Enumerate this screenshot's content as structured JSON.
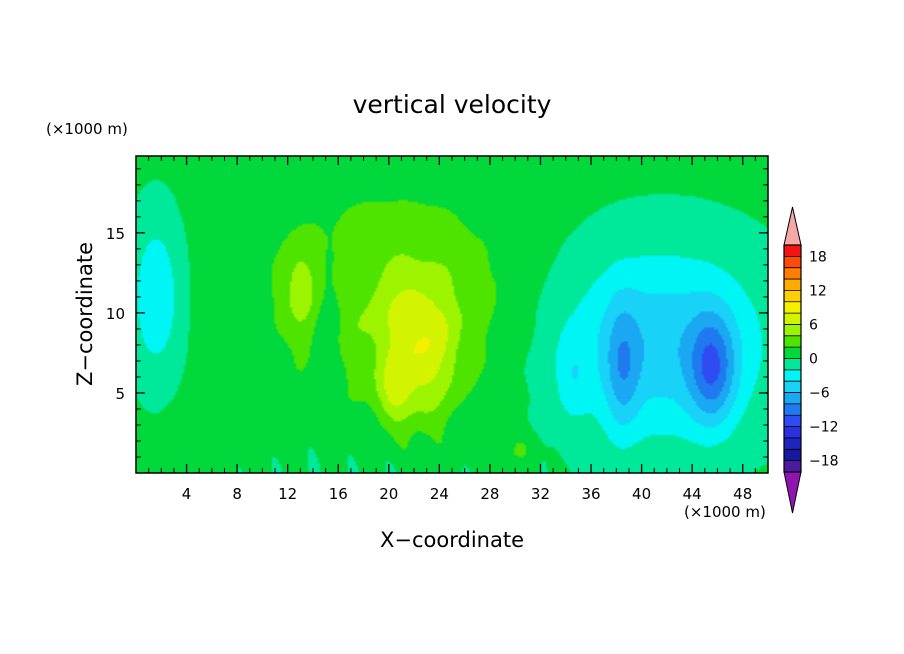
{
  "chart_data": {
    "type": "heatmap",
    "title": "vertical velocity",
    "xlabel": "X−coordinate",
    "ylabel": "Z−coordinate",
    "x_unit": "(×1000 m)",
    "y_unit": "(×1000 m)",
    "xlim": [
      0,
      50
    ],
    "ylim": [
      0,
      19.8
    ],
    "x_ticks": [
      4,
      8,
      12,
      16,
      20,
      24,
      28,
      32,
      36,
      40,
      44,
      48
    ],
    "y_ticks": [
      5,
      10,
      15
    ],
    "colorbar": {
      "levels": [
        -20,
        -18,
        -16,
        -14,
        -12,
        -10,
        -8,
        -6,
        -4,
        -2,
        0,
        2,
        4,
        6,
        8,
        10,
        12,
        14,
        16,
        18,
        20
      ],
      "labeled_ticks": [
        -18,
        -12,
        -6,
        0,
        6,
        12,
        18
      ],
      "colors": [
        "#4b1a9e",
        "#16189e",
        "#1d24bf",
        "#2a2fe0",
        "#2e4cf2",
        "#1f7af0",
        "#1ba8f2",
        "#18d3f7",
        "#00f5f5",
        "#00e89a",
        "#00d83c",
        "#4ee400",
        "#9cf400",
        "#d2f400",
        "#f4f000",
        "#ffd000",
        "#ffab00",
        "#ff7d00",
        "#ff4a0a",
        "#f41414"
      ],
      "under_color": "#9015b0",
      "over_color": "#f4a8a8"
    },
    "field_features": [
      {
        "kind": "updraft",
        "x": 22.5,
        "z": 7.5,
        "peak": 12
      },
      {
        "kind": "updraft",
        "x": 12.8,
        "z": 11.5,
        "peak": 8
      },
      {
        "kind": "updraft",
        "x": 20.5,
        "z": 5,
        "peak": 10
      },
      {
        "kind": "downdraft",
        "x": 45.5,
        "z": 6.5,
        "peak": -12
      },
      {
        "kind": "downdraft",
        "x": 38.5,
        "z": 6,
        "peak": -8
      },
      {
        "kind": "downdraft",
        "x": 1.5,
        "z": 11,
        "peak": -5
      }
    ]
  }
}
